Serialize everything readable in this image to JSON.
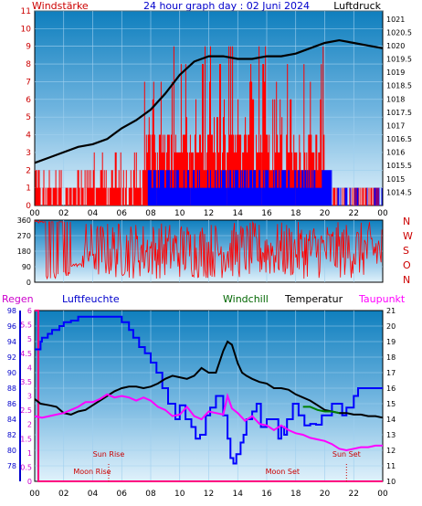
{
  "chart_data": [
    {
      "id": "wind_pressure",
      "type": "line",
      "title": "24 hour graph day : 02 Juni 2024",
      "left_axis_label": "Windstärke",
      "right_axis_label": "Luftdruck",
      "x_tick_labels": [
        "00",
        "02",
        "04",
        "06",
        "08",
        "10",
        "12",
        "14",
        "16",
        "18",
        "20",
        "22",
        "00"
      ],
      "left_ylim": [
        0,
        11
      ],
      "left_y_ticks": [
        "0",
        "1",
        "2",
        "3",
        "4",
        "5",
        "6",
        "7",
        "8",
        "9",
        "10",
        "11"
      ],
      "right_ylim": [
        1014.0,
        1021.3
      ],
      "right_y_ticks": [
        "1014.5",
        "1015",
        "1015.5",
        "1016",
        "1016.5",
        "1017",
        "1017.5",
        "1018",
        "1018.5",
        "1019",
        "1019.5",
        "1020",
        "1020.5",
        "1021"
      ],
      "colors": {
        "wind_gust": "#ff0000",
        "wind_mean": "#0000ff",
        "pressure": "#000000",
        "left_label": "#cc0000"
      },
      "series": [
        {
          "name": "",
          "kind": "pressure",
          "x": [
            0,
            1,
            2,
            3,
            4,
            5,
            6,
            7,
            8,
            9,
            10,
            11,
            12,
            13,
            14,
            15,
            16,
            17,
            18,
            19,
            20,
            21,
            22,
            23,
            24
          ],
          "values": [
            1015.6,
            1015.8,
            1016.0,
            1016.2,
            1016.3,
            1016.5,
            1016.9,
            1017.2,
            1017.6,
            1018.2,
            1018.9,
            1019.4,
            1019.6,
            1019.6,
            1019.5,
            1019.5,
            1019.6,
            1019.6,
            1019.7,
            1019.9,
            1020.1,
            1020.2,
            1020.1,
            1020.0,
            1019.9
          ]
        }
      ]
    },
    {
      "id": "wind_direction",
      "type": "line",
      "left_ylim": [
        0,
        360
      ],
      "left_y_ticks": [
        "0",
        "90",
        "180",
        "270",
        "360"
      ],
      "right_labels": [
        "N",
        "W",
        "S",
        "O",
        "N"
      ],
      "colors": {
        "direction": "#ff0000",
        "right_labels": "#cc0000"
      }
    },
    {
      "id": "humidity_temperature",
      "type": "line",
      "legend": [
        "Regen",
        "Luftfeuchte",
        "Windchill",
        "Temperatur",
        "Taupunkt"
      ],
      "legend_colors": [
        "#cc00cc",
        "#0000cc",
        "#006600",
        "#000000",
        "#ff00ff"
      ],
      "x_tick_labels": [
        "00",
        "02",
        "04",
        "06",
        "08",
        "10",
        "12",
        "14",
        "16",
        "18",
        "20",
        "22",
        "00"
      ],
      "left_rain_ylim": [
        0,
        6
      ],
      "left_rain_ticks": [
        "0",
        "0.5",
        "1",
        "1.5",
        "2",
        "2.5",
        "3",
        "3.5",
        "4",
        "4.5",
        "5",
        "5.5",
        "6"
      ],
      "left_humidity_ylim": [
        76,
        98
      ],
      "left_humidity_ticks": [
        "78",
        "80",
        "82",
        "84",
        "86",
        "88",
        "90",
        "92",
        "94",
        "96",
        "98"
      ],
      "right_ylim": [
        10,
        21
      ],
      "right_y_ticks": [
        "10",
        "11",
        "12",
        "13",
        "14",
        "15",
        "16",
        "17",
        "18",
        "19",
        "20",
        "21"
      ],
      "annotations": [
        "Sun Rise",
        "Sun Set",
        "Moon Rise",
        "Moon Set"
      ],
      "annotation_times": [
        5.1,
        21.5,
        5.1,
        21.5
      ],
      "series": [
        {
          "name": "Luftfeuchte",
          "axis": "humidity",
          "x": [
            0,
            0.1,
            0.4,
            0.5,
            0.9,
            1.2,
            1.7,
            2.0,
            2.5,
            3.0,
            5.5,
            6.0,
            6.5,
            6.8,
            7.2,
            7.6,
            8.0,
            8.4,
            8.8,
            9.2,
            9.7,
            10.0,
            10.4,
            10.8,
            11.1,
            11.4,
            11.8,
            12.1,
            12.5,
            13.0,
            13.3,
            13.5,
            13.7,
            13.9,
            14.2,
            14.4,
            14.6,
            15.0,
            15.3,
            15.6,
            16.0,
            16.4,
            16.8,
            17.0,
            17.2,
            17.4,
            17.8,
            18.2,
            18.6,
            19.0,
            19.4,
            19.8,
            20.5,
            21.2,
            21.5,
            22.0,
            22.3,
            24.0
          ],
          "values": [
            93,
            93,
            94,
            94.5,
            95,
            95.5,
            96,
            96.5,
            96.7,
            97.2,
            97.2,
            96.5,
            95.5,
            94.5,
            93.3,
            92.5,
            91.3,
            90,
            88,
            86,
            84,
            85.8,
            84,
            83,
            81.5,
            82,
            84.5,
            85.5,
            87,
            84.5,
            81.5,
            79,
            78.3,
            79.5,
            81,
            82,
            84,
            85,
            86,
            83,
            84,
            84,
            81.5,
            83,
            82,
            84,
            86,
            84.5,
            83.2,
            83.4,
            83.3,
            84.5,
            86,
            84.5,
            85.5,
            87,
            88,
            88
          ]
        },
        {
          "name": "Temperatur",
          "axis": "temperature",
          "x": [
            0,
            0.4,
            1.0,
            1.5,
            2.0,
            2.5,
            3.0,
            3.5,
            4.0,
            4.5,
            5.0,
            5.5,
            6.0,
            6.5,
            7.0,
            7.5,
            8.0,
            8.5,
            9.0,
            9.5,
            10.0,
            10.5,
            11.0,
            11.5,
            12.0,
            12.5,
            13.0,
            13.3,
            13.6,
            14.0,
            14.3,
            14.6,
            15.0,
            15.5,
            16.0,
            16.5,
            17.0,
            17.5,
            18.0,
            18.5,
            19.0,
            19.5,
            20.0,
            20.5,
            21.0,
            21.5,
            22.0,
            22.5,
            23.0,
            23.5,
            24.0
          ],
          "values": [
            15.3,
            15.0,
            14.9,
            14.8,
            14.4,
            14.3,
            14.5,
            14.6,
            14.9,
            15.2,
            15.5,
            15.8,
            16.0,
            16.1,
            16.1,
            16.0,
            16.1,
            16.3,
            16.6,
            16.8,
            16.7,
            16.6,
            16.8,
            17.3,
            17.0,
            17.0,
            18.4,
            19.0,
            18.8,
            17.6,
            17.0,
            16.8,
            16.6,
            16.4,
            16.3,
            16.0,
            16.0,
            15.9,
            15.6,
            15.4,
            15.2,
            14.9,
            14.6,
            14.5,
            14.4,
            14.4,
            14.3,
            14.3,
            14.2,
            14.2,
            14.1
          ]
        },
        {
          "name": "Taupunkt",
          "axis": "temperature",
          "x": [
            0,
            0.5,
            1.0,
            1.5,
            2.0,
            2.5,
            3.0,
            3.5,
            4.0,
            4.5,
            5.0,
            5.5,
            6.0,
            6.5,
            7.0,
            7.5,
            8.0,
            8.5,
            9.0,
            9.5,
            10.0,
            10.5,
            11.0,
            11.5,
            12.0,
            12.5,
            13.0,
            13.3,
            13.6,
            14.0,
            14.5,
            15.0,
            15.5,
            16.0,
            16.5,
            17.0,
            17.5,
            18.0,
            18.5,
            19.0,
            19.5,
            20.0,
            20.5,
            21.0,
            21.5,
            22.0,
            22.5,
            23.0,
            23.5,
            24.0
          ],
          "values": [
            14.2,
            14.1,
            14.2,
            14.3,
            14.4,
            14.6,
            14.8,
            15.1,
            15.1,
            15.3,
            15.6,
            15.4,
            15.5,
            15.4,
            15.2,
            15.4,
            15.2,
            14.8,
            14.6,
            14.2,
            14.3,
            14.8,
            14.2,
            14.0,
            14.5,
            14.4,
            14.3,
            15.5,
            14.7,
            14.4,
            13.9,
            14.2,
            13.7,
            13.6,
            13.3,
            13.6,
            13.3,
            13.1,
            13.0,
            12.8,
            12.7,
            12.6,
            12.4,
            12.1,
            12.0,
            12.1,
            12.2,
            12.2,
            12.3,
            12.3
          ]
        },
        {
          "name": "Windchill",
          "axis": "temperature",
          "x": [
            18.5,
            19.0,
            19.5,
            20.0,
            20.5,
            21.0
          ],
          "values": [
            14.8,
            14.8,
            14.6,
            14.5,
            14.5,
            14.4
          ]
        }
      ]
    }
  ]
}
